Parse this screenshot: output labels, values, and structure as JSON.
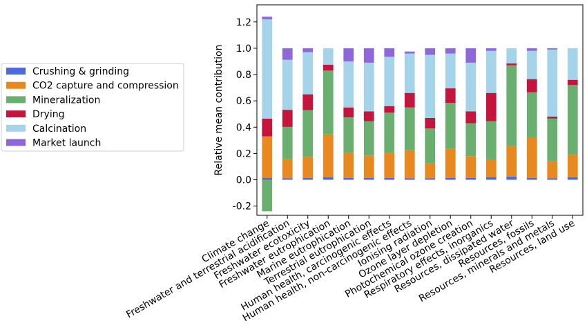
{
  "chart_data": {
    "type": "bar",
    "stacked": true,
    "title": "",
    "xlabel": "",
    "ylabel": "Relative mean contribution",
    "ylim": [
      -0.27,
      1.33
    ],
    "yticks": [
      -0.2,
      0.0,
      0.2,
      0.4,
      0.6,
      0.8,
      1.0,
      1.2
    ],
    "grid": false,
    "legend_position": "left, outside plot",
    "categories": [
      "Climate change",
      "Freshwater and terrestrial acidification",
      "Freshwater ecotoxicity",
      "Freshwater eutrophication",
      "Marine eutrophication",
      "Terrestrial eutrophication",
      "Human health, carcinogenic effects",
      "Human health, non-carcinogenic effects",
      "Ionising radiation",
      "Ozone layer depletion",
      "Photochemical ozone creation",
      "Respiratory effects, inorganics",
      "Resources, dissipated water",
      "Resources, fossils",
      "Resources, minerals and metals",
      "Resources, land use"
    ],
    "series": [
      {
        "name": "Crushing & grinding",
        "color": "#4f6bd9",
        "values": [
          0.015,
          0.012,
          0.015,
          0.02,
          0.015,
          0.015,
          0.015,
          0.012,
          0.012,
          0.015,
          0.015,
          0.02,
          0.025,
          0.015,
          0.012,
          0.02
        ]
      },
      {
        "name": "CO2 capture and compression",
        "color": "#e8891f",
        "values": [
          0.315,
          0.145,
          0.16,
          0.325,
          0.19,
          0.17,
          0.19,
          0.213,
          0.113,
          0.22,
          0.165,
          0.13,
          0.235,
          0.305,
          0.128,
          0.17
        ]
      },
      {
        "name": "Mineralization",
        "color": "#6aaf70",
        "values": [
          -0.24,
          0.245,
          0.355,
          0.485,
          0.27,
          0.26,
          0.305,
          0.325,
          0.265,
          0.35,
          0.25,
          0.295,
          0.61,
          0.345,
          0.325,
          0.53
        ]
      },
      {
        "name": "Drying",
        "color": "#c4163c",
        "values": [
          0.135,
          0.13,
          0.12,
          0.045,
          0.075,
          0.075,
          0.05,
          0.11,
          0.08,
          0.11,
          0.09,
          0.215,
          0.015,
          0.1,
          0.015,
          0.04
        ]
      },
      {
        "name": "Calcination",
        "color": "#a5d3ea",
        "values": [
          0.755,
          0.38,
          0.32,
          0.125,
          0.35,
          0.37,
          0.375,
          0.3,
          0.48,
          0.265,
          0.37,
          0.32,
          0.115,
          0.215,
          0.51,
          0.24
        ]
      },
      {
        "name": "Market launch",
        "color": "#8f68d8",
        "values": [
          0.02,
          0.088,
          0.03,
          0.0,
          0.1,
          0.11,
          0.065,
          0.015,
          0.05,
          0.04,
          0.11,
          0.02,
          0.0,
          0.02,
          0.01,
          0.0
        ]
      }
    ]
  }
}
